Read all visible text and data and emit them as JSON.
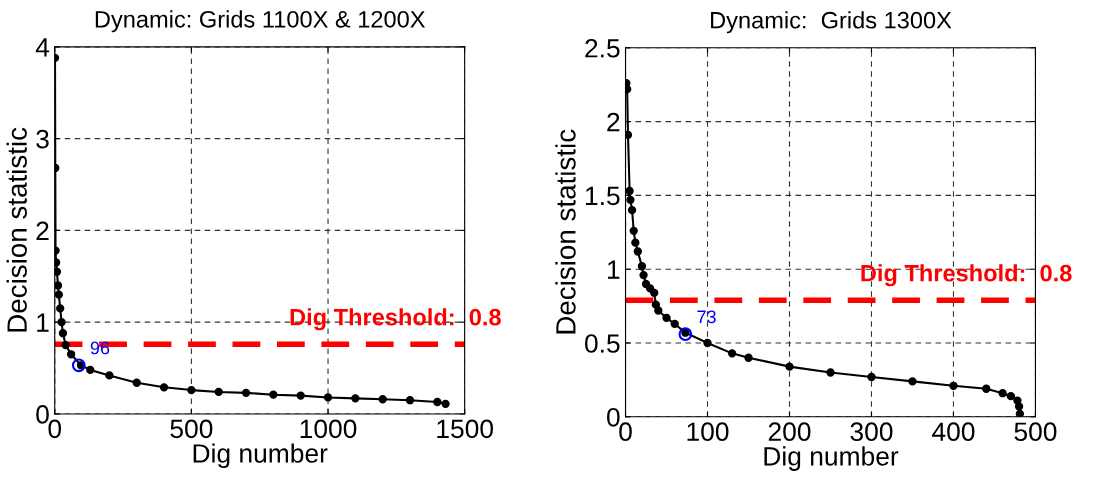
{
  "chart_data": [
    {
      "type": "line",
      "title": "Dynamic: Grids 1100X & 1200X",
      "xlabel": "Dig number",
      "ylabel": "Decision statistic",
      "series": [
        {
          "color": "#000000",
          "marker": "circle",
          "x": [
            1,
            2,
            3,
            5,
            8,
            12,
            15,
            20,
            25,
            30,
            40,
            60,
            96,
            130,
            200,
            300,
            400,
            500,
            600,
            700,
            800,
            900,
            1000,
            1100,
            1200,
            1300,
            1400,
            1430
          ],
          "values": [
            3.88,
            2.68,
            1.78,
            1.65,
            1.55,
            1.4,
            1.3,
            1.15,
            1.0,
            0.88,
            0.75,
            0.65,
            0.53,
            0.48,
            0.42,
            0.34,
            0.29,
            0.26,
            0.24,
            0.23,
            0.21,
            0.2,
            0.18,
            0.17,
            0.16,
            0.15,
            0.13,
            0.11
          ]
        },
        {
          "type": "scatter",
          "color": "#0000ff",
          "marker": "circle",
          "x": [
            88
          ],
          "values": [
            0.53
          ]
        }
      ],
      "annotations": [
        {
          "text": "96",
          "x": 88,
          "y": 0.53
        }
      ],
      "ref_lines": [
        {
          "axis": "y",
          "value": 0.76,
          "label": "Dig Threshold:  0.8",
          "color": "#ff0000",
          "line_style": "dashed"
        }
      ],
      "xlim": [
        0,
        1500
      ],
      "xticks": [
        0,
        500,
        1000,
        1500
      ],
      "ylim": [
        0,
        4
      ],
      "yticks": [
        0,
        1,
        2,
        3,
        4
      ],
      "grid": true
    },
    {
      "type": "line",
      "title": "Dynamic:  Grids 1300X",
      "xlabel": "Dig number",
      "ylabel": "Decision statistic",
      "series": [
        {
          "color": "#000000",
          "marker": "circle",
          "x": [
            1,
            2,
            3,
            5,
            6,
            8,
            10,
            12,
            15,
            20,
            22,
            25,
            30,
            35,
            37,
            40,
            50,
            60,
            73,
            100,
            130,
            150,
            200,
            250,
            300,
            350,
            400,
            440,
            460,
            470,
            478,
            480,
            481
          ],
          "values": [
            2.26,
            2.22,
            1.91,
            1.53,
            1.47,
            1.4,
            1.26,
            1.18,
            1.12,
            1.02,
            0.96,
            0.9,
            0.87,
            0.84,
            0.76,
            0.72,
            0.67,
            0.63,
            0.57,
            0.5,
            0.43,
            0.4,
            0.34,
            0.3,
            0.27,
            0.24,
            0.21,
            0.19,
            0.16,
            0.14,
            0.11,
            0.07,
            0.02
          ]
        },
        {
          "type": "scatter",
          "color": "#0000ff",
          "marker": "circle",
          "x": [
            73
          ],
          "values": [
            0.56
          ]
        }
      ],
      "annotations": [
        {
          "text": "73",
          "x": 73,
          "y": 0.56
        }
      ],
      "ref_lines": [
        {
          "axis": "y",
          "value": 0.79,
          "label": "Dig Threshold:  0.8",
          "color": "#ff0000",
          "line_style": "dashed"
        }
      ],
      "xlim": [
        0,
        500
      ],
      "xticks": [
        0,
        100,
        200,
        300,
        400,
        500
      ],
      "ylim": [
        0,
        2.5
      ],
      "yticks": [
        0,
        0.5,
        1,
        1.5,
        2,
        2.5
      ],
      "grid": true
    }
  ]
}
